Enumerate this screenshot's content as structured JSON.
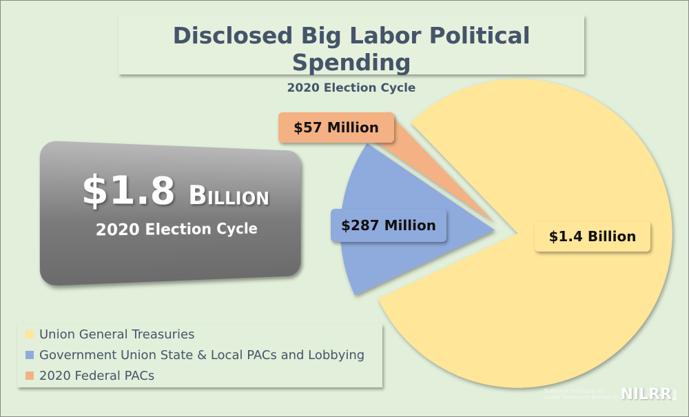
{
  "title": "Disclosed Big Labor Political Spending",
  "subtitle": "2020 Election Cycle",
  "total": {
    "amount": "$1.8",
    "unit": "Billion",
    "cycle": "2020 Election Cycle"
  },
  "chart_data": {
    "type": "pie",
    "title": "Disclosed Big Labor Political Spending",
    "subtitle": "2020 Election Cycle",
    "exploded": true,
    "legend_position": "bottom-left",
    "slices": [
      {
        "name": "Union General Treasuries",
        "value": 1400,
        "label": "$1.4 Billion",
        "color": "#ffe699"
      },
      {
        "name": "Government Union State & Local PACs and Lobbying",
        "value": 287,
        "label": "$287 Million",
        "color": "#8faadc"
      },
      {
        "name": "2020 Federal PACs",
        "value": 57,
        "label": "$57 Million",
        "color": "#f4b183"
      }
    ],
    "units": "millions USD"
  },
  "logo": {
    "line1": "National Institute for",
    "line2": "Labor Relations Research",
    "mark": "NILRR",
    "suffix": ".org"
  }
}
